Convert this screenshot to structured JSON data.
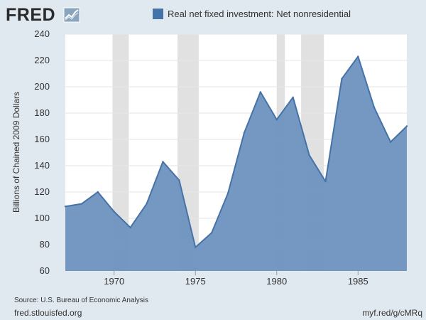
{
  "header": {
    "logo_text": "FRED",
    "logo_icon": "line-chart-icon"
  },
  "footer": {
    "source": "Source: U.S. Bureau of Economic Analysis",
    "site": "fred.stlouisfed.org",
    "short_url": "myf.red/g/cMRq"
  },
  "colors": {
    "background": "#e1e9f0",
    "plot_background": "#ffffff",
    "area_fill": "#7195c0",
    "line": "#4572a7",
    "recession": "#e1e1e1",
    "text": "#333333",
    "logo": "#2a2a2a"
  },
  "chart_data": {
    "type": "area",
    "title": "",
    "xlabel": "",
    "ylabel": "Billions of Chained 2009 Dollars",
    "xlim": [
      1967,
      1988
    ],
    "ylim": [
      60,
      240
    ],
    "x_ticks": [
      "1970",
      "1975",
      "1980",
      "1985"
    ],
    "x_tick_values": [
      1970,
      1975,
      1980,
      1985
    ],
    "y_ticks": [
      "60",
      "80",
      "100",
      "120",
      "140",
      "160",
      "180",
      "200",
      "220",
      "240"
    ],
    "y_tick_values": [
      60,
      80,
      100,
      120,
      140,
      160,
      180,
      200,
      220,
      240
    ],
    "grid": true,
    "legend_position": "top",
    "series": [
      {
        "name": "Real net fixed investment: Net nonresidential",
        "x": [
          1967,
          1968,
          1969,
          1970,
          1971,
          1972,
          1973,
          1974,
          1975,
          1976,
          1977,
          1978,
          1979,
          1980,
          1981,
          1982,
          1983,
          1984,
          1985,
          1986,
          1987,
          1988
        ],
        "values": [
          109,
          111,
          120,
          105,
          93,
          111,
          143,
          129,
          78,
          89,
          119,
          165,
          196,
          175,
          192,
          148,
          128,
          206,
          223,
          184,
          158,
          170
        ]
      }
    ],
    "recessions": [
      [
        1969.9,
        1970.9
      ],
      [
        1973.9,
        1975.2
      ],
      [
        1980.0,
        1980.5
      ],
      [
        1981.5,
        1982.9
      ]
    ]
  }
}
